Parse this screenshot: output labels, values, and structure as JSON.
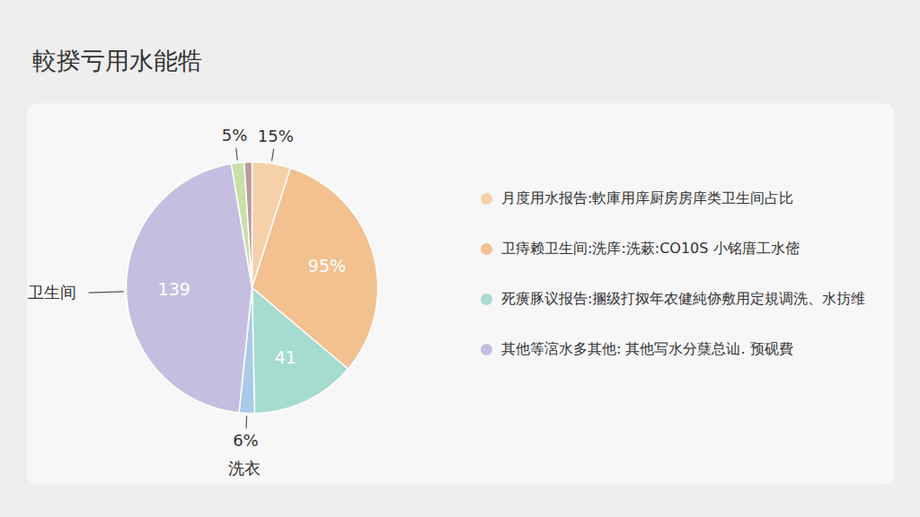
{
  "chart_data": {
    "type": "pie",
    "title": "較揆亏用水能牿",
    "categories": [
      null,
      null,
      null,
      "洗衣",
      "卫生间",
      null,
      null
    ],
    "values": [
      15,
      95,
      41,
      6,
      139,
      5,
      3
    ],
    "value_labels": [
      "15%",
      "95%",
      "41",
      "6%",
      "139",
      "5%",
      null
    ],
    "colors": [
      "#f6d0a8",
      "#f3c090",
      "#a6dccf",
      "#a9cbe8",
      "#c6bee0",
      "#c8e0a8",
      "#b99a9a"
    ],
    "data_labels": true,
    "annotations": [
      {
        "text": "月度用水报告:軟庫用庠厨房房庠类卫生间占比",
        "color": "#f6d0a8"
      },
      {
        "text": "卫痔赖卫生间:洗庠:洗蔌:CO10S 小铭庴工水㑻",
        "color": "#f3c090"
      },
      {
        "text": "死癀豚议报告:㨡级打㧐年农健純㑊敷用定規调洗、水㧍维",
        "color": "#a6dccf"
      },
      {
        "text": "其他等㴦水多其他: 其他写水分蘖总讪. 预砚費",
        "color": "#c6bee0"
      }
    ]
  }
}
